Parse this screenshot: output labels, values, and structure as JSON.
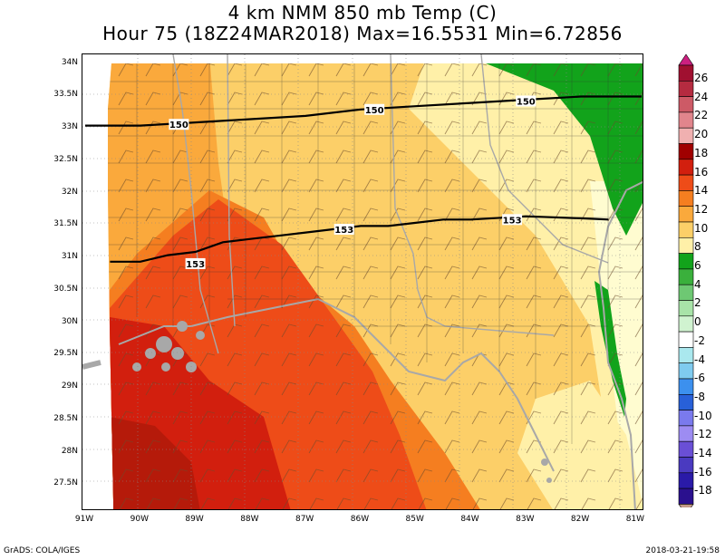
{
  "title": {
    "line1": "4 km NMM 850 mb Temp (C)",
    "line2": "Hour 75 (18Z24MAR2018) Max=16.5531 Min=6.72856"
  },
  "map": {
    "lat_labels": [
      "34N",
      "33.5N",
      "33N",
      "32.5N",
      "32N",
      "31.5N",
      "31N",
      "30.5N",
      "30N",
      "29.5N",
      "29N",
      "28.5N",
      "28N",
      "27.5N"
    ],
    "lon_labels": [
      "91W",
      "90W",
      "89W",
      "88W",
      "87W",
      "86W",
      "85W",
      "84W",
      "83W",
      "82W",
      "81W"
    ],
    "lat_range": [
      27.1,
      34.15
    ],
    "lon_range": [
      -91.05,
      -80.85
    ],
    "contours": [
      {
        "label": "150",
        "points": [
          [
            -91.0,
            33.05
          ],
          [
            -90.0,
            33.05
          ],
          [
            -89.0,
            33.1
          ],
          [
            -88.0,
            33.15
          ],
          [
            -87.0,
            33.2
          ],
          [
            -86.0,
            33.3
          ],
          [
            -85.0,
            33.35
          ],
          [
            -84.0,
            33.4
          ],
          [
            -83.0,
            33.45
          ],
          [
            -82.0,
            33.5
          ],
          [
            -80.9,
            33.5
          ]
        ],
        "label_positions": [
          [
            -89.3,
            33.07
          ],
          [
            -85.75,
            33.3
          ],
          [
            -83.0,
            33.43
          ]
        ],
        "label_texts": [
          "150",
          "150",
          "150"
        ]
      },
      {
        "label": "153",
        "points": [
          [
            -90.55,
            30.95
          ],
          [
            -90.0,
            30.95
          ],
          [
            -89.5,
            31.05
          ],
          [
            -89.0,
            31.1
          ],
          [
            -88.5,
            31.25
          ],
          [
            -88.0,
            31.3
          ],
          [
            -87.5,
            31.35
          ],
          [
            -87.0,
            31.4
          ],
          [
            -86.5,
            31.45
          ],
          [
            -86.0,
            31.5
          ],
          [
            -85.5,
            31.5
          ],
          [
            -85.0,
            31.55
          ],
          [
            -84.5,
            31.6
          ],
          [
            -84.0,
            31.6
          ],
          [
            -83.0,
            31.65
          ],
          [
            -82.0,
            31.62
          ],
          [
            -81.5,
            31.6
          ]
        ],
        "label_positions": [
          [
            -89.0,
            30.92
          ],
          [
            -86.3,
            31.45
          ],
          [
            -83.25,
            31.6
          ]
        ],
        "label_texts": [
          "153",
          "153",
          "153"
        ]
      }
    ]
  },
  "colorbar": {
    "labels": [
      "26",
      "24",
      "22",
      "20",
      "18",
      "16",
      "14",
      "12",
      "10",
      "8",
      "6",
      "4",
      "2",
      "0",
      "-2",
      "-4",
      "-6",
      "-8",
      "-10",
      "-12",
      "-14",
      "-16",
      "-18"
    ],
    "colors": [
      "#a01030",
      "#b52b40",
      "#cd5a66",
      "#e1858c",
      "#f0b0b0",
      "#a00000",
      "#d21f0e",
      "#ee4c18",
      "#f57e20",
      "#faa93c",
      "#fccf68",
      "#fff0a8",
      "#12a31b",
      "#3ab03c",
      "#6ec873",
      "#a8e3a8",
      "#d0f3d0",
      "#ffffff",
      "#aae8ee",
      "#7fcbef",
      "#3c90ee",
      "#2860d8",
      "#7a7aed",
      "#9d8cf2",
      "#6a4fd6",
      "#4a3ac0",
      "#2a1aa8",
      "#2a108e"
    ]
  },
  "footer": {
    "left": "GrADS: COLA/IGES",
    "right": "2018-03-21-19:58"
  }
}
